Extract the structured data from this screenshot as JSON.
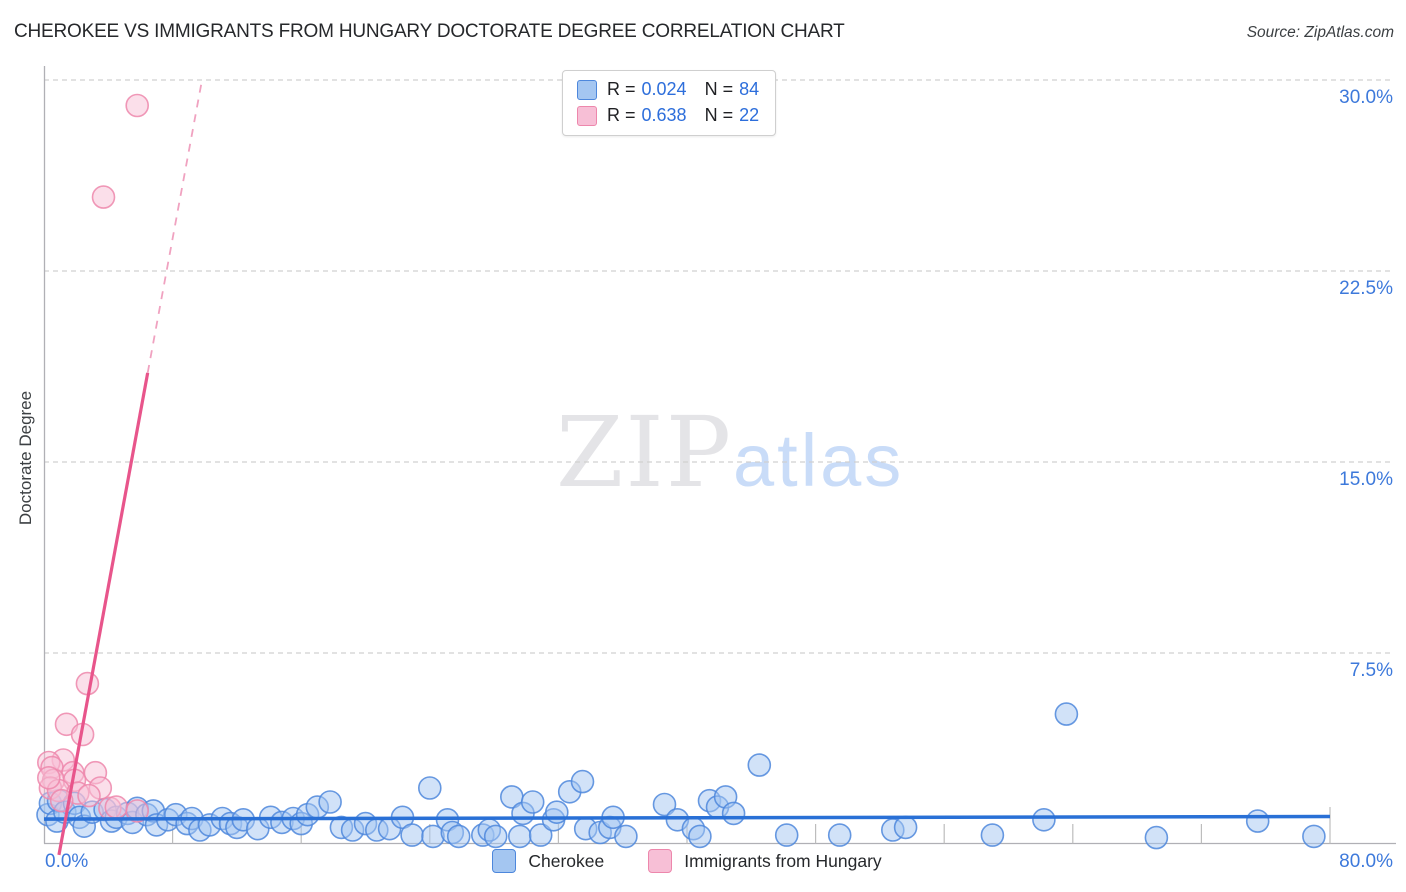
{
  "header": {
    "title": "CHEROKEE VS IMMIGRANTS FROM HUNGARY DOCTORATE DEGREE CORRELATION CHART",
    "source": "Source: ZipAtlas.com"
  },
  "watermark": {
    "zip": "ZIP",
    "atlas": "atlas"
  },
  "axes": {
    "y_title": "Doctorate Degree",
    "y_ticks": [
      {
        "label": "30.0%",
        "value": 30
      },
      {
        "label": "22.5%",
        "value": 22.5
      },
      {
        "label": "15.0%",
        "value": 15
      },
      {
        "label": "7.5%",
        "value": 7.5
      }
    ],
    "x_labels": [
      {
        "label": "0.0%",
        "value": 0,
        "anchor": "start"
      },
      {
        "label": "80.0%",
        "value": 80,
        "anchor": "end"
      }
    ]
  },
  "legend_box": {
    "r_label": "R =",
    "n_label": "N =",
    "rows": [
      {
        "series": "Cherokee",
        "r": "0.024",
        "n": "84"
      },
      {
        "series": "Immigrants from Hungary",
        "r": "0.638",
        "n": "22"
      }
    ]
  },
  "bottom_legend": [
    {
      "label": "Cherokee"
    },
    {
      "label": "Immigrants from Hungary"
    }
  ],
  "colors": {
    "accent_text": "#3d79db",
    "legend_value": "#2d6edb",
    "grid": "#d0d0d0",
    "axis": "#b0b0b5",
    "cherokee_fill": "#a4c6f1",
    "cherokee_stroke": "#4d87dc",
    "cherokee_trend": "#2970d6",
    "hungary_fill": "#f7bfd6",
    "hungary_stroke": "#ed87ac",
    "hungary_trend": "#e8558b",
    "hungary_trend_dash": "#f0a2c0"
  },
  "chart_data": {
    "type": "scatter",
    "title": "Cherokee vs Immigrants from Hungary Doctorate Degree",
    "xlabel": "",
    "ylabel": "Doctorate Degree",
    "xlim": [
      0,
      80
    ],
    "ylim": [
      0,
      30
    ],
    "grid": "horizontal-dashed",
    "legend_position": "bottom-center",
    "series": [
      {
        "name": "Cherokee",
        "R": 0.024,
        "N": 84,
        "points": [
          [
            0.25,
            1.15
          ],
          [
            0.4,
            1.6
          ],
          [
            0.8,
            0.9
          ],
          [
            0.9,
            1.7
          ],
          [
            1.3,
            1.25
          ],
          [
            1.9,
            1.6
          ],
          [
            2.2,
            1.05
          ],
          [
            2.5,
            0.7
          ],
          [
            3.0,
            1.25
          ],
          [
            3.8,
            1.35
          ],
          [
            4.2,
            0.9
          ],
          [
            4.5,
            1.05
          ],
          [
            5.2,
            1.2
          ],
          [
            5.5,
            0.85
          ],
          [
            5.8,
            1.4
          ],
          [
            6.4,
            1.15
          ],
          [
            6.8,
            1.3
          ],
          [
            7.0,
            0.75
          ],
          [
            7.7,
            0.95
          ],
          [
            8.2,
            1.15
          ],
          [
            8.9,
            0.8
          ],
          [
            9.2,
            1.0
          ],
          [
            9.7,
            0.55
          ],
          [
            10.3,
            0.75
          ],
          [
            11.1,
            1.0
          ],
          [
            11.6,
            0.8
          ],
          [
            12.0,
            0.65
          ],
          [
            12.4,
            0.95
          ],
          [
            13.3,
            0.6
          ],
          [
            14.1,
            1.05
          ],
          [
            14.8,
            0.85
          ],
          [
            15.5,
            1.0
          ],
          [
            16.0,
            0.8
          ],
          [
            16.4,
            1.15
          ],
          [
            17.0,
            1.45
          ],
          [
            17.8,
            1.65
          ],
          [
            18.5,
            0.65
          ],
          [
            19.2,
            0.55
          ],
          [
            20.0,
            0.8
          ],
          [
            20.7,
            0.55
          ],
          [
            21.5,
            0.6
          ],
          [
            22.3,
            1.05
          ],
          [
            22.9,
            0.35
          ],
          [
            24.0,
            2.2
          ],
          [
            24.2,
            0.3
          ],
          [
            25.1,
            0.95
          ],
          [
            25.4,
            0.45
          ],
          [
            25.8,
            0.3
          ],
          [
            27.3,
            0.35
          ],
          [
            27.7,
            0.55
          ],
          [
            28.1,
            0.3
          ],
          [
            29.1,
            1.85
          ],
          [
            29.6,
            0.3
          ],
          [
            29.8,
            1.2
          ],
          [
            30.4,
            1.65
          ],
          [
            30.9,
            0.35
          ],
          [
            31.7,
            0.95
          ],
          [
            31.9,
            1.25
          ],
          [
            32.7,
            2.05
          ],
          [
            33.5,
            2.45
          ],
          [
            33.7,
            0.6
          ],
          [
            34.6,
            0.45
          ],
          [
            35.2,
            0.65
          ],
          [
            35.4,
            1.05
          ],
          [
            36.2,
            0.3
          ],
          [
            38.6,
            1.55
          ],
          [
            39.4,
            0.95
          ],
          [
            40.4,
            0.6
          ],
          [
            40.8,
            0.3
          ],
          [
            41.4,
            1.7
          ],
          [
            41.9,
            1.45
          ],
          [
            42.4,
            1.85
          ],
          [
            42.9,
            1.2
          ],
          [
            44.5,
            3.1
          ],
          [
            46.2,
            0.35
          ],
          [
            49.5,
            0.35
          ],
          [
            52.8,
            0.55
          ],
          [
            53.6,
            0.65
          ],
          [
            59.0,
            0.35
          ],
          [
            62.2,
            0.95
          ],
          [
            63.6,
            5.1
          ],
          [
            69.2,
            0.25
          ],
          [
            75.5,
            0.9
          ],
          [
            79.0,
            0.3
          ]
        ],
        "trend": {
          "x1": 0,
          "y1": 0.98,
          "x2": 80,
          "y2": 1.08
        }
      },
      {
        "name": "Immigrants from Hungary",
        "R": 0.638,
        "N": 22,
        "points": [
          [
            5.8,
            29.0
          ],
          [
            3.7,
            25.4
          ],
          [
            2.7,
            6.3
          ],
          [
            1.4,
            4.7
          ],
          [
            2.4,
            4.3
          ],
          [
            1.2,
            3.3
          ],
          [
            0.3,
            3.2
          ],
          [
            0.5,
            3.0
          ],
          [
            1.8,
            2.8
          ],
          [
            3.2,
            2.8
          ],
          [
            0.6,
            2.5
          ],
          [
            1.9,
            2.5
          ],
          [
            0.4,
            2.2
          ],
          [
            3.5,
            2.2
          ],
          [
            0.9,
            2.1
          ],
          [
            2.1,
            2.0
          ],
          [
            2.8,
            1.9
          ],
          [
            0.3,
            2.6
          ],
          [
            1.1,
            1.7
          ],
          [
            4.1,
            1.4
          ],
          [
            4.5,
            1.45
          ],
          [
            5.8,
            1.3
          ]
        ],
        "trend": {
          "x1": 0.93,
          "y1": -0.43,
          "x2": 6.45,
          "y2": 18.5,
          "dashed_extension": {
            "x": 9.83,
            "y": 30
          }
        }
      }
    ]
  }
}
